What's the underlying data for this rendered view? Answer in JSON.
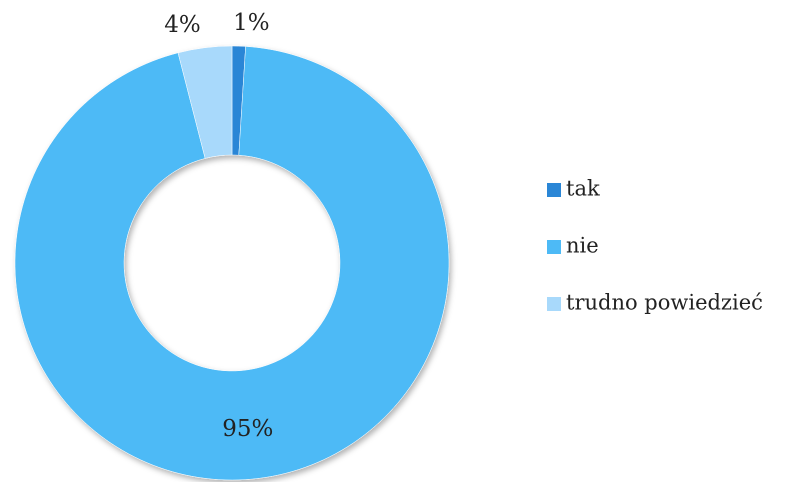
{
  "chart_data": {
    "type": "donut",
    "categories": [
      "tak",
      "nie",
      "trudno powiedzieć"
    ],
    "values": [
      1,
      95,
      4
    ],
    "value_labels": [
      "1%",
      "95%",
      "4%"
    ],
    "colors": [
      "#2a86d6",
      "#4dbaf6",
      "#a8d9fb"
    ],
    "legend": "right"
  }
}
